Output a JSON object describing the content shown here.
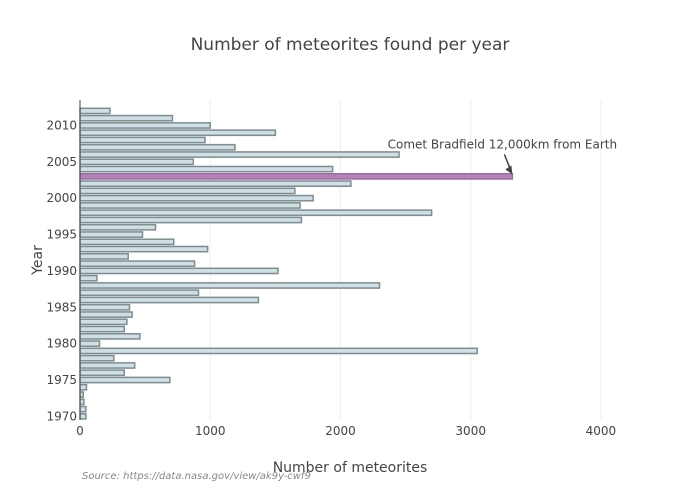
{
  "chart_data": {
    "type": "bar",
    "orientation": "horizontal",
    "title": "Number of meteorites found per year",
    "xlabel": "Number of meteorites",
    "ylabel": "Year",
    "xlim": [
      0,
      4300
    ],
    "ylim": [
      1969.5,
      2013.5
    ],
    "xticks": [
      0,
      1000,
      2000,
      3000,
      4000
    ],
    "yticks": [
      1970,
      1975,
      1980,
      1985,
      1990,
      1995,
      2000,
      2005,
      2010
    ],
    "grid": true,
    "legend": "none",
    "colors": {
      "bar_fill": "#cfdfe6",
      "bar_stroke": "#7f8c8d",
      "highlight_fill": "#b284b8",
      "highlight_stroke": "#a06aa6"
    },
    "highlight_year": 2003,
    "annotation": {
      "text": "Comet Bradfield 12,000km from Earth",
      "year": 2003,
      "value": 3320
    },
    "source": "Source: https://data.nasa.gov/view/ak9y-cwf9",
    "years": [
      1970,
      1971,
      1972,
      1973,
      1974,
      1975,
      1976,
      1977,
      1978,
      1979,
      1980,
      1981,
      1982,
      1983,
      1984,
      1985,
      1986,
      1987,
      1988,
      1989,
      1990,
      1991,
      1992,
      1993,
      1994,
      1995,
      1996,
      1997,
      1998,
      1999,
      2000,
      2001,
      2002,
      2003,
      2004,
      2005,
      2006,
      2007,
      2008,
      2009,
      2010,
      2011,
      2012,
      2013
    ],
    "values": [
      45,
      45,
      30,
      25,
      50,
      690,
      340,
      420,
      260,
      3050,
      150,
      460,
      340,
      360,
      400,
      380,
      1370,
      910,
      2300,
      130,
      1520,
      880,
      370,
      980,
      720,
      480,
      580,
      1700,
      2700,
      1690,
      1790,
      1650,
      2080,
      3320,
      1940,
      870,
      2450,
      1190,
      960,
      1500,
      1000,
      710,
      230,
      0
    ]
  }
}
